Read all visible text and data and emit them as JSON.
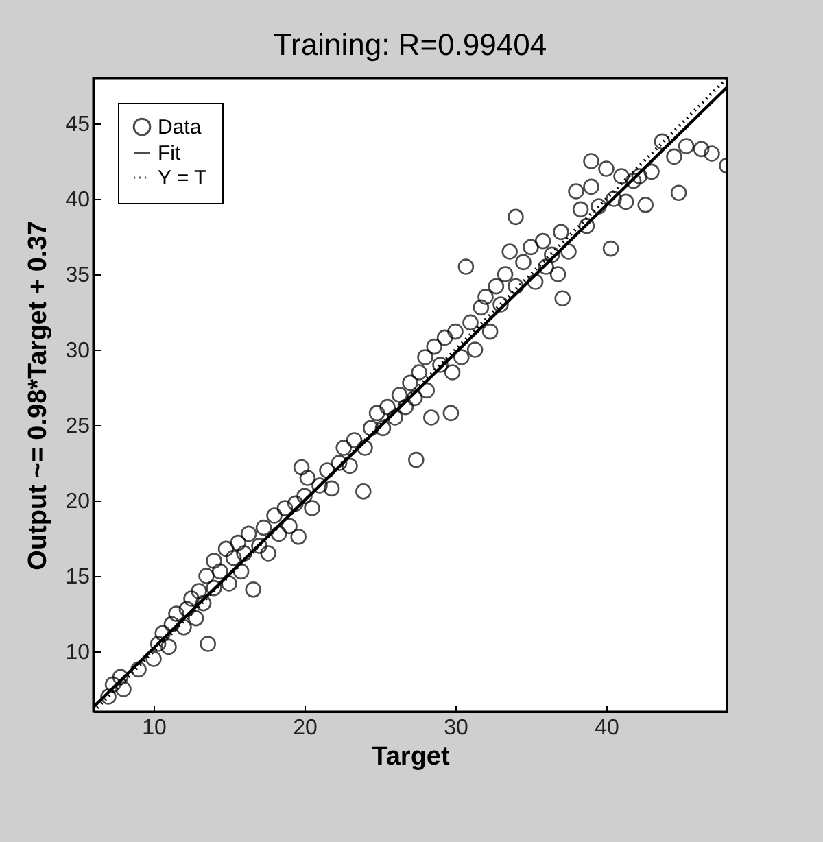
{
  "chart_data": {
    "type": "scatter",
    "title": "Training: R=0.99404",
    "xlabel": "Target",
    "ylabel": "Output ~= 0.98*Target + 0.37",
    "xlim": [
      6,
      48
    ],
    "ylim": [
      6,
      48
    ],
    "xticks": [
      10,
      20,
      30,
      40
    ],
    "yticks": [
      10,
      15,
      20,
      25,
      30,
      35,
      40,
      45
    ],
    "grid": false,
    "legend": "top left",
    "series": [
      {
        "name": "Data",
        "marker": "circle",
        "color": "#000000",
        "x": [
          7,
          7.3,
          7.8,
          8,
          9,
          10,
          10.3,
          10.6,
          11,
          11.2,
          11.5,
          12,
          12.2,
          12.5,
          12.8,
          13,
          13.3,
          13.5,
          13.6,
          14,
          14,
          14.4,
          14.8,
          15,
          15.3,
          15.6,
          15.8,
          16,
          16.3,
          16.6,
          17,
          17.3,
          17.6,
          18,
          18.3,
          18.7,
          19,
          19.4,
          19.6,
          20,
          20.2,
          20.5,
          19.8,
          21,
          21.5,
          21.8,
          22.3,
          22.6,
          23,
          23.3,
          23.9,
          24,
          24.4,
          24.8,
          25.2,
          25.5,
          26,
          26.3,
          26.7,
          27,
          27.4,
          27.3,
          27.6,
          28,
          28.1,
          28.4,
          28.6,
          29,
          29.3,
          29.7,
          29.8,
          30,
          30.4,
          30.7,
          31,
          31.3,
          31.7,
          32,
          32.3,
          32.7,
          33,
          33.3,
          33.6,
          34,
          34,
          34.5,
          35,
          35.3,
          35.8,
          36,
          36.4,
          36.8,
          37.1,
          37,
          37.5,
          38,
          38.3,
          38.7,
          39,
          39,
          39.5,
          40,
          40.3,
          40.5,
          41,
          41.3,
          41.8,
          42.2,
          42.6,
          43,
          43.7,
          44.5,
          44.8,
          45.3,
          46.3,
          47,
          48
        ],
        "values": [
          7,
          7.8,
          8.3,
          7.5,
          8.8,
          9.5,
          10.5,
          11.2,
          10.3,
          11.8,
          12.5,
          11.6,
          12.8,
          13.5,
          12.2,
          14,
          13.2,
          15,
          10.5,
          14.2,
          16,
          15.3,
          16.8,
          14.5,
          16.2,
          17.2,
          15.3,
          16.5,
          17.8,
          14.1,
          17,
          18.2,
          16.5,
          19,
          17.8,
          19.5,
          18.3,
          19.8,
          17.6,
          20.3,
          21.5,
          19.5,
          22.2,
          21,
          22,
          20.8,
          22.5,
          23.5,
          22.3,
          24,
          20.6,
          23.5,
          24.8,
          25.8,
          24.8,
          26.2,
          25.5,
          27,
          26.2,
          27.8,
          22.7,
          26.8,
          28.5,
          29.5,
          27.3,
          25.5,
          30.2,
          29,
          30.8,
          25.8,
          28.5,
          31.2,
          29.5,
          35.5,
          31.8,
          30,
          32.8,
          33.5,
          31.2,
          34.2,
          33,
          35,
          36.5,
          34.2,
          38.8,
          35.8,
          36.8,
          34.5,
          37.2,
          35.5,
          36.3,
          35,
          33.4,
          37.8,
          36.5,
          40.5,
          39.3,
          38.2,
          40.8,
          42.5,
          39.5,
          42,
          36.7,
          40,
          41.5,
          39.8,
          41.2,
          41.5,
          39.6,
          41.8,
          43.8,
          42.8,
          40.4,
          43.5,
          43.3,
          43,
          42.2
        ]
      },
      {
        "name": "Fit",
        "type": "line",
        "color": "#000000",
        "line_style": "solid",
        "x": [
          6,
          48
        ],
        "values": [
          6.3,
          47.4
        ]
      },
      {
        "name": "Y = T",
        "type": "line",
        "color": "#000000",
        "line_style": "dotted",
        "x": [
          6,
          48
        ],
        "values": [
          6,
          48
        ]
      }
    ]
  }
}
